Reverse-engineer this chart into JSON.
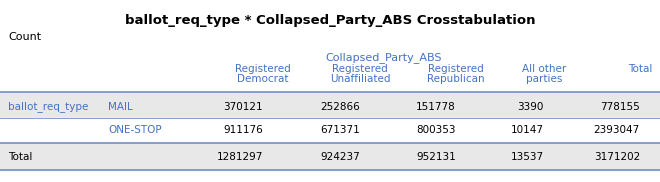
{
  "title": "ballot_req_type * Collapsed_Party_ABS Crosstabulation",
  "count_label": "Count",
  "group_header": "Collapsed_Party_ABS",
  "col_headers_line1": [
    "Registered",
    "Registered",
    "Registered",
    "All other",
    "Total"
  ],
  "col_headers_line2": [
    "Democrat",
    "Unaffiliated",
    "Republican",
    "parties",
    ""
  ],
  "row0_label1": "ballot_req_type",
  "row0_label2": "MAIL",
  "row0_values": [
    370121,
    252866,
    151778,
    3390,
    778155
  ],
  "row1_label2": "ONE-STOP",
  "row1_values": [
    911176,
    671371,
    800353,
    10147,
    2393047
  ],
  "total_label": "Total",
  "total_values": [
    1281297,
    924237,
    952131,
    13537,
    3171202
  ],
  "title_color": "#000000",
  "header_color": "#4472C4",
  "row_label_color": "#4472C4",
  "bg_shaded": "#E8E8E8",
  "bg_white": "#FFFFFF",
  "line_color": "#7090C8",
  "text_color": "#000000",
  "figw": 6.6,
  "figh": 1.82,
  "dpi": 100
}
